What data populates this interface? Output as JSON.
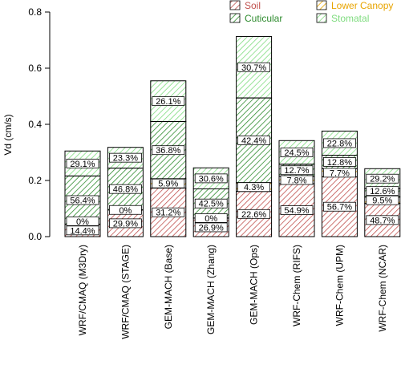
{
  "chart_data": {
    "type": "bar",
    "stacked": true,
    "title": "",
    "xlabel": "",
    "ylabel": "Vd (cm/s)",
    "ylim": [
      0,
      0.8
    ],
    "yticks": [
      "0.0",
      "0.2",
      "0.4",
      "0.6",
      "0.8"
    ],
    "grid": false,
    "legend_position": "top-right",
    "categories": [
      "WRF/CMAQ (M3Dry)",
      "WRF/CMAQ (STAGE)",
      "GEM-MACH (Base)",
      "GEM-MACH (Zhang)",
      "GEM-MACH (Ops)",
      "WRF-Chem (RIFS)",
      "WRF-Chem (UPM)",
      "WRF-Chem (NCAR)"
    ],
    "series": [
      {
        "name": "Soil",
        "color": "#c0504d",
        "values": [
          0.044,
          0.095,
          0.173,
          0.066,
          0.161,
          0.188,
          0.213,
          0.118
        ],
        "labels": [
          "14.4%",
          "29.9%",
          "31.2%",
          "26.9%",
          "22.6%",
          "54.9%",
          "56.7%",
          "48.7%"
        ]
      },
      {
        "name": "Lower Canopy",
        "color": "#e8a400",
        "values": [
          0.0,
          0.0,
          0.033,
          0.0,
          0.031,
          0.027,
          0.029,
          0.023
        ],
        "labels": [
          "0%",
          "0%",
          "5.9%",
          "0%",
          "4.3%",
          "7.8%",
          "7.7%",
          "9.5%"
        ]
      },
      {
        "name": "Cuticular",
        "color": "#2e8b2e",
        "values": [
          0.172,
          0.149,
          0.204,
          0.104,
          0.302,
          0.043,
          0.048,
          0.03
        ],
        "labels": [
          "56.4%",
          "46.8%",
          "36.8%",
          "42.5%",
          "42.4%",
          "12.7%",
          "12.8%",
          "12.6%"
        ]
      },
      {
        "name": "Stomatal",
        "color": "#7fdc7f",
        "values": [
          0.089,
          0.074,
          0.145,
          0.075,
          0.219,
          0.084,
          0.086,
          0.071
        ],
        "labels": [
          "29.1%",
          "23.3%",
          "26.1%",
          "30.6%",
          "30.7%",
          "24.5%",
          "22.8%",
          "29.2%"
        ]
      }
    ]
  }
}
